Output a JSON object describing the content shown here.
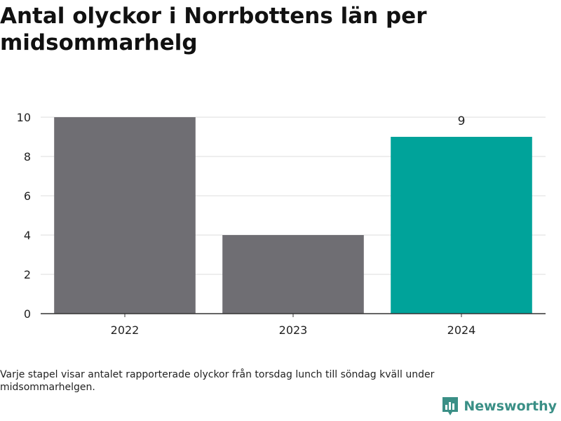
{
  "title": "Antal olyckor i Norrbottens län per midsommarhelg",
  "footnote": "Varje stapel visar antalet rapporterade olyckor från torsdag lunch till söndag kväll under midsommarhelgen.",
  "brand": {
    "name": "Newsworthy",
    "color": "#3a8f86"
  },
  "colors": {
    "default_bar": "#6f6e73",
    "highlight_bar": "#00a39a",
    "grid": "#dddddd",
    "axis": "#333333"
  },
  "chart_data": {
    "type": "bar",
    "categories": [
      "2022",
      "2023",
      "2024"
    ],
    "values": [
      10,
      4,
      9
    ],
    "highlight_index": 2,
    "data_labels": [
      "",
      "",
      "9"
    ],
    "ylim": [
      0,
      10
    ],
    "yticks": [
      0,
      2,
      4,
      6,
      8,
      10
    ],
    "grid": true,
    "xlabel": "",
    "ylabel": ""
  }
}
